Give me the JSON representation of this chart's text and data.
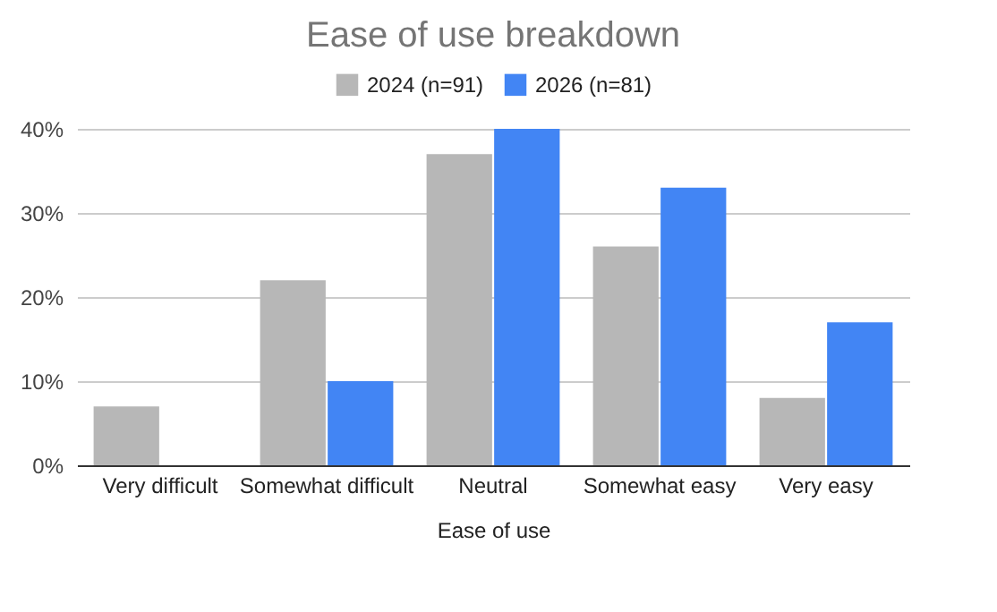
{
  "chart_data": {
    "type": "bar",
    "title": "Ease of use breakdown",
    "xlabel": "Ease of use",
    "categories": [
      "Very difficult",
      "Somewhat difficult",
      "Neutral",
      "Somewhat easy",
      "Very easy"
    ],
    "series": [
      {
        "name": "2024 (n=91)",
        "color": "#b7b7b7",
        "values": [
          7,
          22,
          37,
          26,
          8
        ]
      },
      {
        "name": "2026 (n=81)",
        "color": "#4285f4",
        "values": [
          0,
          10,
          40,
          33,
          17
        ]
      }
    ],
    "ylim": [
      0,
      40
    ],
    "yticks": [
      {
        "value": 0,
        "label": "0%"
      },
      {
        "value": 10,
        "label": "10%"
      },
      {
        "value": 20,
        "label": "20%"
      },
      {
        "value": 30,
        "label": "30%"
      },
      {
        "value": 40,
        "label": "40%"
      }
    ],
    "grid": "y",
    "legend": "top"
  }
}
